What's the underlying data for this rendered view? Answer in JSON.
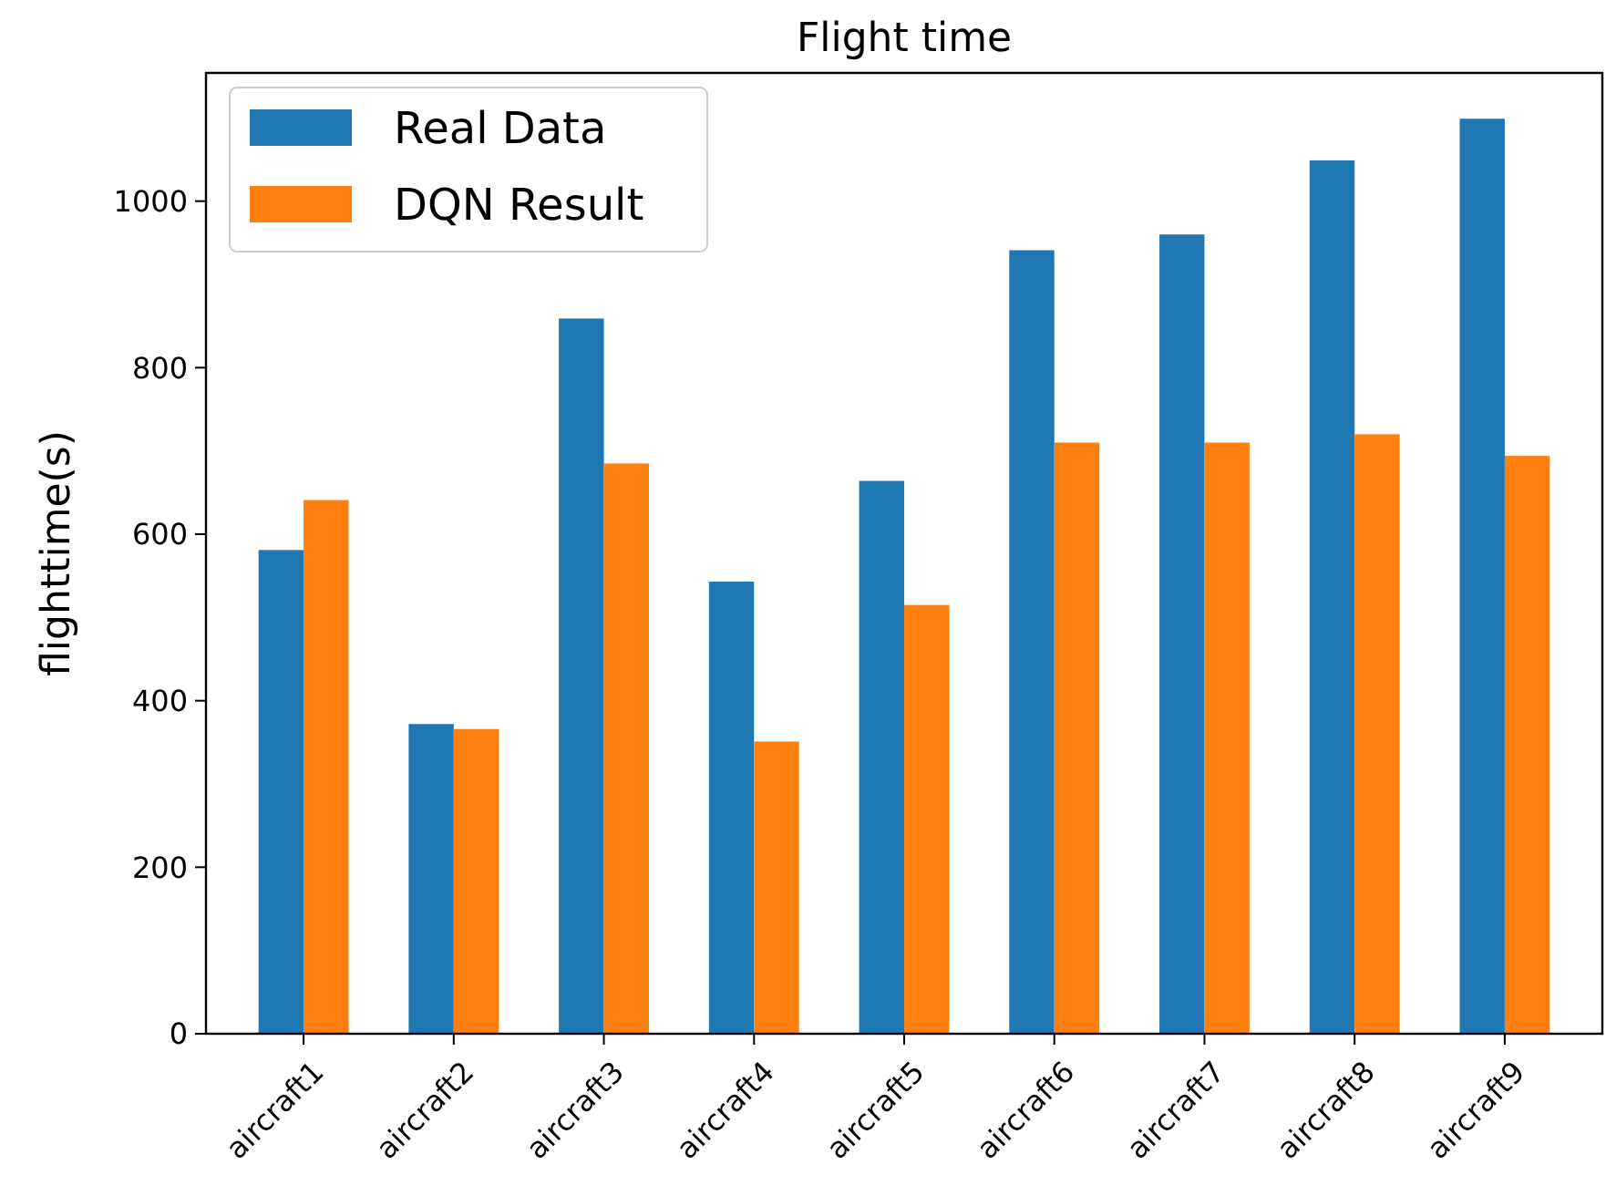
{
  "chart_data": {
    "type": "bar",
    "title": "Flight time",
    "ylabel": "flighttime(s)",
    "categories": [
      "aircraft1",
      "aircraft2",
      "aircraft3",
      "aircraft4",
      "aircraft5",
      "aircraft6",
      "aircraft7",
      "aircraft8",
      "aircraft9"
    ],
    "series": [
      {
        "name": "Real Data",
        "color": "#1f77b4",
        "values": [
          581,
          372,
          859,
          543,
          664,
          941,
          960,
          1049,
          1099
        ]
      },
      {
        "name": "DQN Result",
        "color": "#ff7f0e",
        "values": [
          641,
          366,
          685,
          351,
          515,
          710,
          710,
          720,
          694
        ]
      }
    ],
    "ylim": [
      0,
      1154
    ],
    "yticks": [
      0,
      200,
      400,
      600,
      800,
      1000
    ],
    "grid": false,
    "legend": "top left"
  }
}
